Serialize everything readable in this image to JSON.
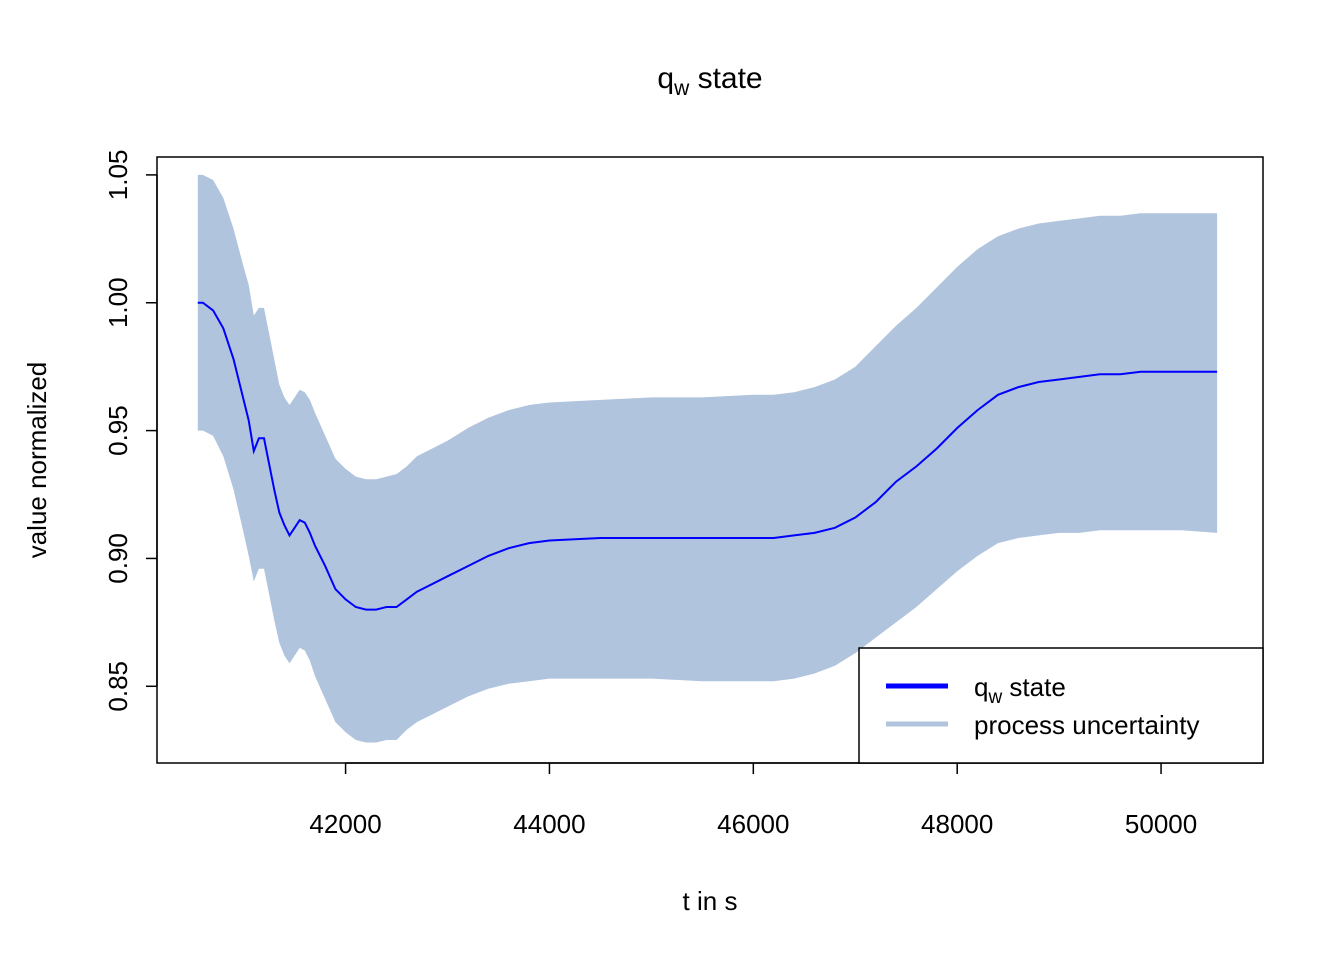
{
  "chart_data": {
    "type": "area",
    "title": {
      "main": "q",
      "subscript": "w",
      "rest": " state"
    },
    "xlabel": "t in s",
    "ylabel": "value normalized",
    "xlim": [
      40150,
      51000
    ],
    "ylim": [
      0.82,
      1.057
    ],
    "x_ticks": [
      42000,
      44000,
      46000,
      48000,
      50000
    ],
    "x_tick_labels": [
      "42000",
      "44000",
      "46000",
      "48000",
      "50000"
    ],
    "y_ticks": [
      0.85,
      0.9,
      0.95,
      1.0,
      1.05
    ],
    "y_tick_labels": [
      "0.85",
      "0.90",
      "0.95",
      "1.00",
      "1.05"
    ],
    "grid": false,
    "legend": {
      "position": "bottom-right",
      "entries": [
        {
          "main": "q",
          "subscript": "w",
          "rest": " state",
          "color": "#0000FF"
        },
        {
          "main": "process uncertainty",
          "subscript": "",
          "rest": "",
          "color": "#B0C4DE"
        }
      ]
    },
    "series": [
      {
        "name": "state",
        "kind": "line",
        "color": "#0000FF",
        "x": [
          40550,
          40600,
          40700,
          40800,
          40900,
          41000,
          41050,
          41100,
          41150,
          41200,
          41250,
          41300,
          41350,
          41400,
          41450,
          41500,
          41550,
          41600,
          41650,
          41700,
          41800,
          41900,
          42000,
          42100,
          42200,
          42300,
          42400,
          42500,
          42600,
          42700,
          42800,
          43000,
          43200,
          43400,
          43600,
          43800,
          44000,
          44500,
          45000,
          45500,
          46000,
          46200,
          46400,
          46600,
          46800,
          47000,
          47200,
          47400,
          47600,
          47800,
          48000,
          48200,
          48400,
          48600,
          48800,
          49000,
          49200,
          49400,
          49600,
          49800,
          50000,
          50200,
          50550
        ],
        "values": [
          1.0,
          1.0,
          0.997,
          0.99,
          0.978,
          0.962,
          0.954,
          0.942,
          0.947,
          0.947,
          0.937,
          0.927,
          0.918,
          0.913,
          0.909,
          0.912,
          0.915,
          0.914,
          0.91,
          0.905,
          0.897,
          0.888,
          0.884,
          0.881,
          0.88,
          0.88,
          0.881,
          0.881,
          0.884,
          0.887,
          0.889,
          0.893,
          0.897,
          0.901,
          0.904,
          0.906,
          0.907,
          0.908,
          0.908,
          0.908,
          0.908,
          0.908,
          0.909,
          0.91,
          0.912,
          0.916,
          0.922,
          0.93,
          0.936,
          0.943,
          0.951,
          0.958,
          0.964,
          0.967,
          0.969,
          0.97,
          0.971,
          0.972,
          0.972,
          0.973,
          0.973,
          0.973,
          0.973
        ]
      },
      {
        "name": "process uncertainty",
        "kind": "band",
        "color": "#B0C4DE",
        "x": [
          40550,
          40600,
          40700,
          40800,
          40900,
          41000,
          41050,
          41100,
          41150,
          41200,
          41250,
          41300,
          41350,
          41400,
          41450,
          41500,
          41550,
          41600,
          41650,
          41700,
          41800,
          41900,
          42000,
          42100,
          42200,
          42300,
          42400,
          42500,
          42600,
          42700,
          42800,
          43000,
          43200,
          43400,
          43600,
          43800,
          44000,
          44500,
          45000,
          45500,
          46000,
          46200,
          46400,
          46600,
          46800,
          47000,
          47200,
          47400,
          47600,
          47800,
          48000,
          48200,
          48400,
          48600,
          48800,
          49000,
          49200,
          49400,
          49600,
          49800,
          50000,
          50200,
          50550
        ],
        "upper": [
          1.05,
          1.05,
          1.048,
          1.041,
          1.029,
          1.014,
          1.007,
          0.995,
          0.998,
          0.998,
          0.988,
          0.978,
          0.968,
          0.963,
          0.96,
          0.963,
          0.966,
          0.965,
          0.962,
          0.957,
          0.948,
          0.939,
          0.935,
          0.932,
          0.931,
          0.931,
          0.932,
          0.933,
          0.936,
          0.94,
          0.942,
          0.946,
          0.951,
          0.955,
          0.958,
          0.96,
          0.961,
          0.962,
          0.963,
          0.963,
          0.964,
          0.964,
          0.965,
          0.967,
          0.97,
          0.975,
          0.983,
          0.991,
          0.998,
          1.006,
          1.014,
          1.021,
          1.026,
          1.029,
          1.031,
          1.032,
          1.033,
          1.034,
          1.034,
          1.035,
          1.035,
          1.035,
          1.035
        ],
        "lower": [
          0.95,
          0.95,
          0.948,
          0.94,
          0.927,
          0.91,
          0.901,
          0.891,
          0.896,
          0.896,
          0.886,
          0.876,
          0.867,
          0.862,
          0.859,
          0.862,
          0.865,
          0.864,
          0.86,
          0.854,
          0.845,
          0.836,
          0.832,
          0.829,
          0.828,
          0.828,
          0.829,
          0.829,
          0.833,
          0.836,
          0.838,
          0.842,
          0.846,
          0.849,
          0.851,
          0.852,
          0.853,
          0.853,
          0.853,
          0.852,
          0.852,
          0.852,
          0.853,
          0.855,
          0.858,
          0.863,
          0.869,
          0.875,
          0.881,
          0.888,
          0.895,
          0.901,
          0.906,
          0.908,
          0.909,
          0.91,
          0.91,
          0.911,
          0.911,
          0.911,
          0.911,
          0.911,
          0.91
        ]
      }
    ]
  }
}
